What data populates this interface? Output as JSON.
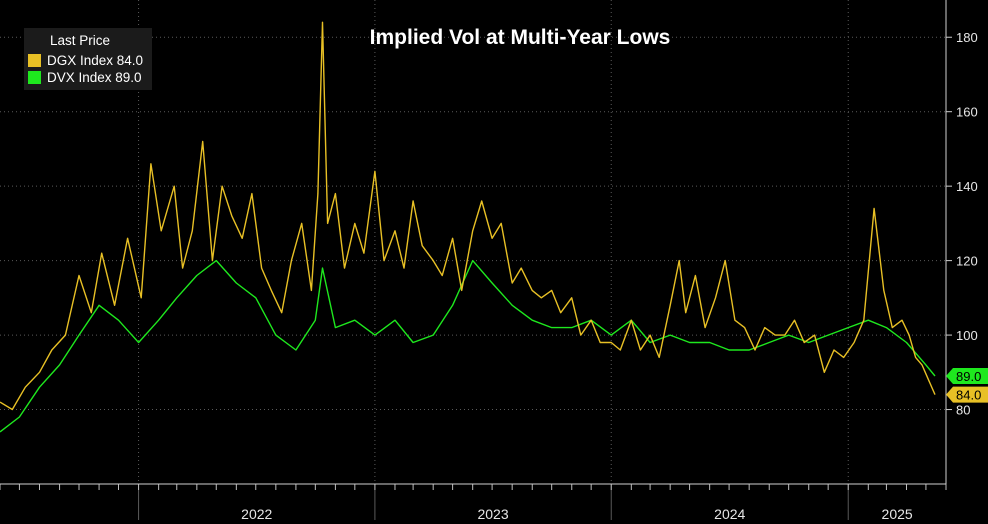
{
  "chart_data": {
    "type": "line",
    "title": "Implied Vol at Multi-Year Lows",
    "legend": {
      "header": "Last Price",
      "placement": "top-left",
      "entries": [
        {
          "label": "DGX Index 84.0",
          "color": "#e8c025"
        },
        {
          "label": "DVX Index 89.0",
          "color": "#1ee81e"
        }
      ]
    },
    "x_ticks": [
      "2022",
      "2023",
      "2024",
      "2025"
    ],
    "x_range": [
      "2021-06-01",
      "2025-06-01"
    ],
    "y_ticks": [
      80,
      100,
      120,
      140,
      160,
      180
    ],
    "ylim": [
      60,
      190
    ],
    "y_axis_side": "right",
    "grid": true,
    "series": [
      {
        "name": "DGX Index",
        "color": "#e8c025",
        "last_value": "84.0",
        "x": [
          "2021-06-01",
          "2021-06-20",
          "2021-07-10",
          "2021-08-01",
          "2021-08-20",
          "2021-09-10",
          "2021-10-01",
          "2021-10-20",
          "2021-11-05",
          "2021-11-25",
          "2021-12-15",
          "2022-01-05",
          "2022-01-20",
          "2022-02-05",
          "2022-02-25",
          "2022-03-10",
          "2022-03-25",
          "2022-04-10",
          "2022-04-25",
          "2022-05-10",
          "2022-05-25",
          "2022-06-10",
          "2022-06-25",
          "2022-07-10",
          "2022-07-25",
          "2022-08-10",
          "2022-08-25",
          "2022-09-10",
          "2022-09-25",
          "2022-10-05",
          "2022-10-12",
          "2022-10-20",
          "2022-11-01",
          "2022-11-15",
          "2022-12-01",
          "2022-12-15",
          "2023-01-01",
          "2023-01-15",
          "2023-02-01",
          "2023-02-15",
          "2023-03-01",
          "2023-03-15",
          "2023-04-01",
          "2023-04-15",
          "2023-05-01",
          "2023-05-15",
          "2023-06-01",
          "2023-06-15",
          "2023-07-01",
          "2023-07-15",
          "2023-08-01",
          "2023-08-15",
          "2023-09-01",
          "2023-09-15",
          "2023-10-01",
          "2023-10-15",
          "2023-11-01",
          "2023-11-15",
          "2023-12-01",
          "2023-12-15",
          "2024-01-01",
          "2024-01-15",
          "2024-02-01",
          "2024-02-15",
          "2024-03-01",
          "2024-03-15",
          "2024-04-01",
          "2024-04-15",
          "2024-04-25",
          "2024-05-10",
          "2024-05-25",
          "2024-06-10",
          "2024-06-25",
          "2024-07-10",
          "2024-07-25",
          "2024-08-10",
          "2024-08-25",
          "2024-09-10",
          "2024-09-25",
          "2024-10-10",
          "2024-10-25",
          "2024-11-10",
          "2024-11-25",
          "2024-12-10",
          "2024-12-25",
          "2025-01-10",
          "2025-01-25",
          "2025-02-10",
          "2025-02-25",
          "2025-03-10",
          "2025-03-25",
          "2025-04-05",
          "2025-04-15",
          "2025-04-25",
          "2025-05-05",
          "2025-05-15"
        ],
        "values": [
          82,
          80,
          86,
          90,
          96,
          100,
          116,
          106,
          122,
          108,
          126,
          110,
          146,
          128,
          140,
          118,
          128,
          152,
          120,
          140,
          132,
          126,
          138,
          118,
          112,
          106,
          120,
          130,
          112,
          138,
          184,
          130,
          138,
          118,
          130,
          122,
          144,
          120,
          128,
          118,
          136,
          124,
          120,
          116,
          126,
          112,
          128,
          136,
          126,
          130,
          114,
          118,
          112,
          110,
          112,
          106,
          110,
          100,
          104,
          98,
          98,
          96,
          104,
          96,
          100,
          94,
          108,
          120,
          106,
          116,
          102,
          110,
          120,
          104,
          102,
          96,
          102,
          100,
          100,
          104,
          98,
          100,
          90,
          96,
          94,
          98,
          104,
          134,
          112,
          102,
          104,
          100,
          94,
          92,
          88,
          84
        ]
      },
      {
        "name": "DVX Index",
        "color": "#1ee81e",
        "last_value": "89.0",
        "x": [
          "2021-06-01",
          "2021-07-01",
          "2021-08-01",
          "2021-09-01",
          "2021-10-01",
          "2021-11-01",
          "2021-12-01",
          "2022-01-01",
          "2022-02-01",
          "2022-03-01",
          "2022-04-01",
          "2022-05-01",
          "2022-06-01",
          "2022-07-01",
          "2022-08-01",
          "2022-09-01",
          "2022-10-01",
          "2022-10-12",
          "2022-11-01",
          "2022-12-01",
          "2023-01-01",
          "2023-02-01",
          "2023-03-01",
          "2023-04-01",
          "2023-05-01",
          "2023-06-01",
          "2023-07-01",
          "2023-08-01",
          "2023-09-01",
          "2023-10-01",
          "2023-11-01",
          "2023-12-01",
          "2024-01-01",
          "2024-02-01",
          "2024-03-01",
          "2024-04-01",
          "2024-05-01",
          "2024-06-01",
          "2024-07-01",
          "2024-08-01",
          "2024-09-01",
          "2024-10-01",
          "2024-11-01",
          "2024-12-01",
          "2025-01-01",
          "2025-02-01",
          "2025-03-01",
          "2025-04-01",
          "2025-05-01",
          "2025-05-15"
        ],
        "values": [
          74,
          78,
          86,
          92,
          100,
          108,
          104,
          98,
          104,
          110,
          116,
          120,
          114,
          110,
          100,
          96,
          104,
          118,
          102,
          104,
          100,
          104,
          98,
          100,
          108,
          120,
          114,
          108,
          104,
          102,
          102,
          104,
          100,
          104,
          98,
          100,
          98,
          98,
          96,
          96,
          98,
          100,
          98,
          100,
          102,
          104,
          102,
          98,
          92,
          89
        ]
      }
    ]
  }
}
